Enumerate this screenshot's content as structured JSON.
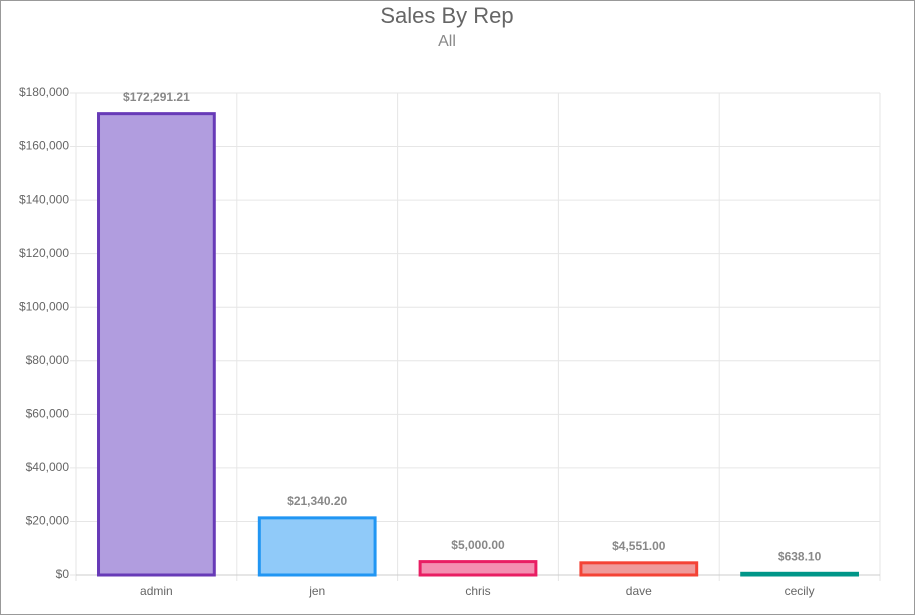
{
  "chart_data": {
    "type": "bar",
    "title": "Sales By Rep",
    "subtitle": "All",
    "categories": [
      "admin",
      "jen",
      "chris",
      "dave",
      "cecily"
    ],
    "values": [
      172291.21,
      21340.2,
      5000.0,
      4551.0,
      638.1
    ],
    "value_labels": [
      "$172,291.21",
      "$21,340.20",
      "$5,000.00",
      "$4,551.00",
      "$638.10"
    ],
    "colors": [
      "#b19ddf",
      "#90caf9",
      "#f48fb1",
      "#ef9a9a",
      "#80cbc4"
    ],
    "border_colors": [
      "#673ab7",
      "#2196f3",
      "#e91e63",
      "#f44336",
      "#009688"
    ],
    "ylim": [
      0,
      180000
    ],
    "yticks": [
      {
        "value": 0,
        "label": "$0"
      },
      {
        "value": 20000,
        "label": "$20,000"
      },
      {
        "value": 40000,
        "label": "$40,000"
      },
      {
        "value": 60000,
        "label": "$60,000"
      },
      {
        "value": 80000,
        "label": "$80,000"
      },
      {
        "value": 100000,
        "label": "$100,000"
      },
      {
        "value": 120000,
        "label": "$120,000"
      },
      {
        "value": 140000,
        "label": "$140,000"
      },
      {
        "value": 160000,
        "label": "$160,000"
      },
      {
        "value": 180000,
        "label": "$180,000"
      }
    ],
    "grid": true
  }
}
